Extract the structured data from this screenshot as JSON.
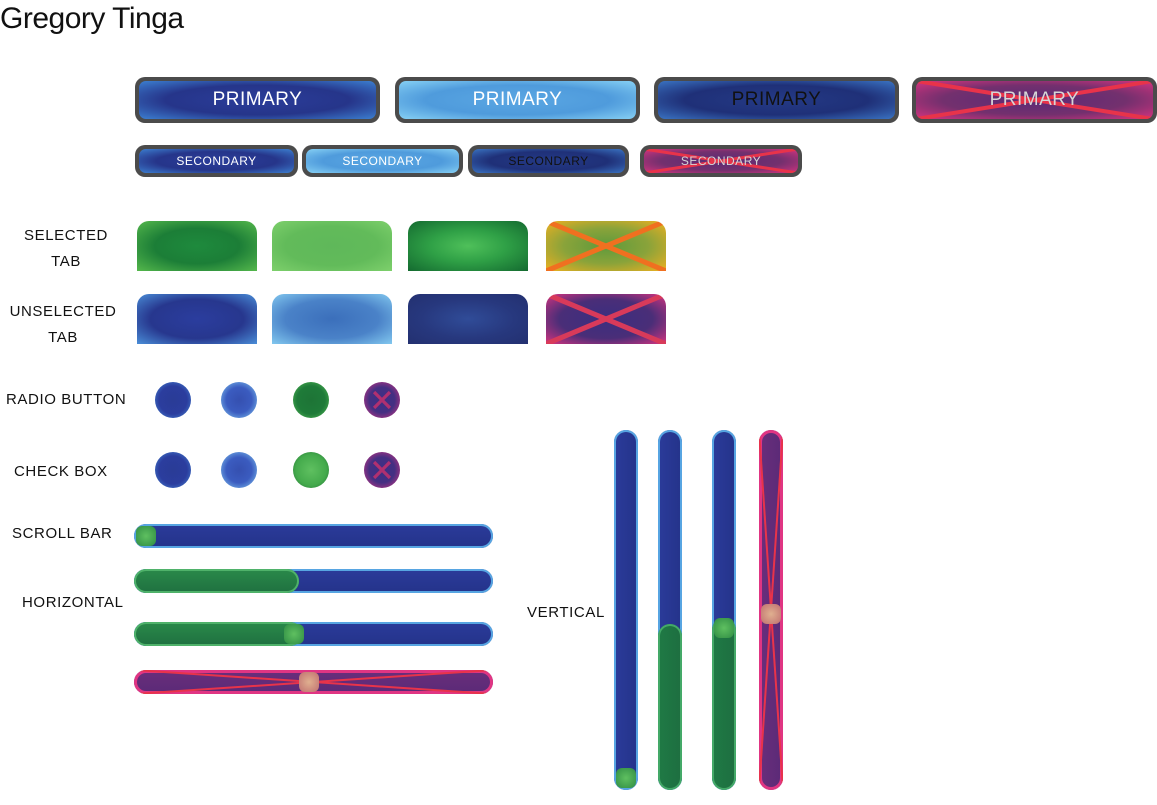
{
  "title": "Gregory Tinga",
  "colors": {
    "normal": "#2b3d9e",
    "hover": "#5aa7e3",
    "pressed": "#1f3078",
    "disabled": "#d8337f",
    "tab_selected": "#1e8a3d",
    "scroll_fill": "#1f7a45"
  },
  "buttons": {
    "primary_label": "PRIMARY",
    "secondary_label": "SECONDARY"
  },
  "labels": {
    "selected_tab": [
      "SELECTED",
      "TAB"
    ],
    "unselected_tab": [
      "UNSELECTED",
      "TAB"
    ],
    "radio_button": "RADIO BUTTON",
    "check_box": "CHECK BOX",
    "scroll_bar": "SCROLL BAR",
    "horizontal": "HORIZONTAL",
    "vertical": "VERTICAL"
  },
  "scrollbars": {
    "horizontal_fill": [
      0,
      0.46,
      0.46,
      0
    ],
    "horizontal_thumb": [
      0,
      null,
      0.45,
      0.49
    ],
    "vertical_fill": [
      0,
      0.47,
      0.48,
      0
    ],
    "vertical_thumb": [
      0,
      null,
      0.49,
      0.49
    ]
  }
}
